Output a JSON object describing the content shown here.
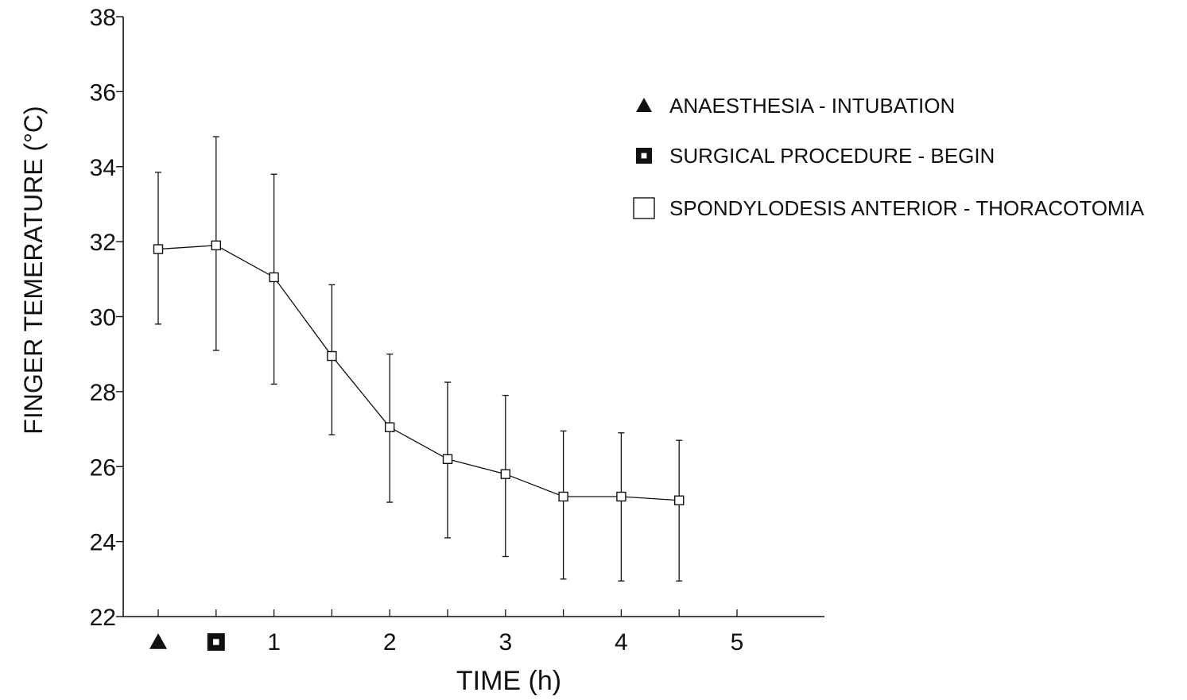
{
  "chart_data": {
    "type": "line",
    "xlabel": "TIME (h)",
    "ylabel": "FINGER TEMERATURE (°C)",
    "xlim": [
      -0.25,
      5.25
    ],
    "ylim": [
      22,
      38
    ],
    "x_ticks": [
      {
        "value": 0,
        "label": "",
        "marker": "filled-triangle"
      },
      {
        "value": 0.5,
        "label": "",
        "marker": "filled-square-dot"
      },
      {
        "value": 1,
        "label": "1"
      },
      {
        "value": 2,
        "label": "2"
      },
      {
        "value": 3,
        "label": "3"
      },
      {
        "value": 4,
        "label": "4"
      },
      {
        "value": 5,
        "label": "5"
      }
    ],
    "x_minor_ticks": [
      0,
      0.5,
      1,
      1.5,
      2,
      2.5,
      3,
      3.5,
      4,
      4.5,
      5
    ],
    "y_ticks": [
      22,
      24,
      26,
      28,
      30,
      32,
      34,
      36,
      38
    ],
    "grid": false,
    "legend_position": "top-right",
    "legend": [
      {
        "marker": "filled-triangle",
        "label": "ANAESTHESIA - INTUBATION"
      },
      {
        "marker": "filled-square-dot",
        "label": "SURGICAL PROCEDURE - BEGIN"
      },
      {
        "marker": "open-square",
        "label": "SPONDYLODESIS ANTERIOR - THORACOTOMIA"
      }
    ],
    "series": [
      {
        "marker": "open-square",
        "x": [
          0,
          0.5,
          1,
          1.5,
          2,
          2.5,
          3,
          3.5,
          4,
          4.5
        ],
        "y": [
          31.8,
          31.9,
          31.05,
          28.95,
          27.05,
          26.2,
          25.8,
          25.2,
          25.2,
          25.1
        ],
        "error_low": [
          29.8,
          29.1,
          28.2,
          26.85,
          25.05,
          24.1,
          23.6,
          23.0,
          22.95,
          22.95
        ],
        "error_high": [
          33.85,
          34.8,
          33.8,
          30.85,
          29.0,
          28.25,
          27.9,
          26.95,
          26.9,
          26.7
        ]
      }
    ]
  },
  "colors": {
    "ink": "#111111",
    "background": "#ffffff"
  }
}
